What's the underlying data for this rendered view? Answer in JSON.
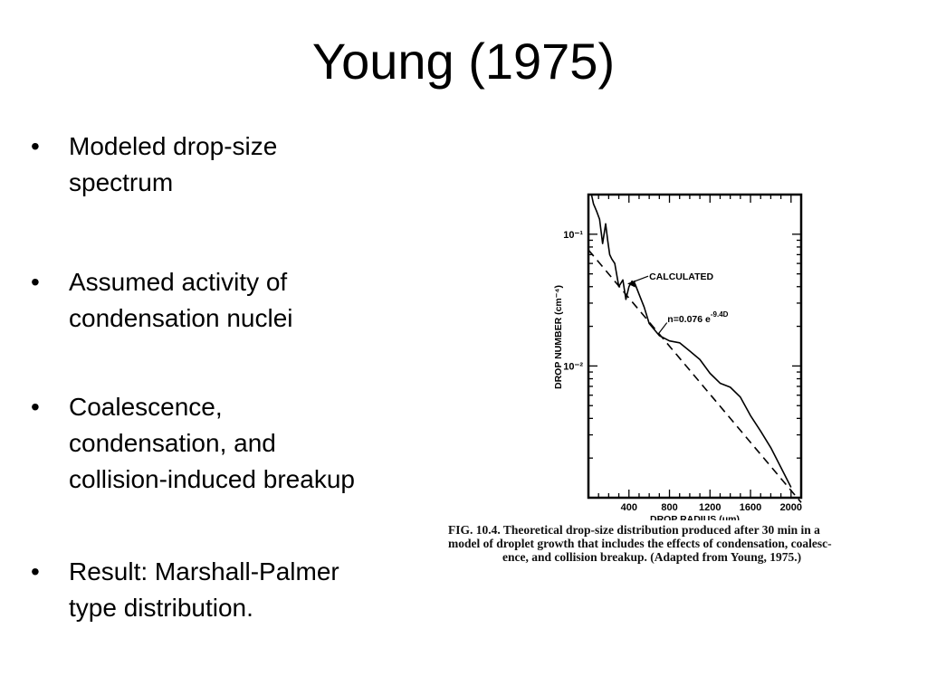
{
  "title": "Young (1975)",
  "bullets": [
    {
      "line1": "Modeled drop-size",
      "line2": "spectrum"
    },
    {
      "line1": "Assumed activity of",
      "line2": "condensation nuclei"
    },
    {
      "line1": "Coalescence,",
      "line2": "condensation, and",
      "line3": "collision-induced breakup"
    },
    {
      "line1": "Result: Marshall-Palmer",
      "line2": "type distribution."
    }
  ],
  "figure": {
    "caption_line1": "FIG. 10.4. Theoretical drop-size distribution produced after 30 min in a",
    "caption_line2": "model of droplet growth that includes the effects of condensation, coalesc-",
    "caption_line3": "ence, and collision breakup. (Adapted from Young, 1975.)"
  },
  "chart_data": {
    "type": "line",
    "xlabel": "DROP RADIUS (μm)",
    "ylabel": "DROP NUMBER (cm⁻⁴)",
    "x_ticks": [
      400,
      800,
      1200,
      1600,
      2000
    ],
    "y_scale": "log",
    "y_ticks": [
      0.1,
      0.01
    ],
    "y_tick_labels": [
      "10⁻¹",
      "10⁻²"
    ],
    "xlim": [
      0,
      2100
    ],
    "ylim": [
      0.001,
      0.2
    ],
    "series": [
      {
        "name": "CALCULATED",
        "style": "solid",
        "x": [
          30,
          50,
          80,
          110,
          140,
          170,
          190,
          210,
          230,
          260,
          300,
          340,
          370,
          400,
          430,
          460,
          500,
          550,
          600,
          700,
          800,
          900,
          1000,
          1100,
          1200,
          1300,
          1400,
          1500,
          1600,
          1700,
          1800,
          1900,
          2000
        ],
        "y": [
          0.2,
          0.17,
          0.15,
          0.13,
          0.085,
          0.12,
          0.09,
          0.07,
          0.065,
          0.06,
          0.04,
          0.045,
          0.032,
          0.04,
          0.044,
          0.042,
          0.035,
          0.028,
          0.021,
          0.017,
          0.0155,
          0.015,
          0.013,
          0.0112,
          0.0088,
          0.0074,
          0.0069,
          0.0058,
          0.0042,
          0.0032,
          0.0024,
          0.0017,
          0.0012
        ]
      },
      {
        "name": "n=0.076 e^-9.4D",
        "style": "dashed",
        "x": [
          0,
          2100
        ],
        "y": [
          0.076,
          0.00092
        ]
      }
    ],
    "annotations": [
      {
        "text": "CALCULATED"
      },
      {
        "text": "n=0.076 e",
        "sup": "-9.4D"
      }
    ],
    "grid": false
  }
}
